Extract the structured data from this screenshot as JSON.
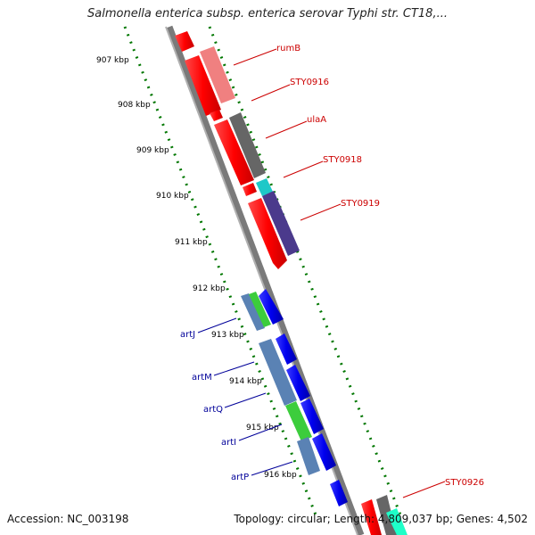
{
  "title": "Salmonella enterica subsp. enterica serovar Typhi str. CT18,...",
  "footer": {
    "accession": "Accession: NC_003198",
    "summary": "Topology: circular; Length: 4,809,037 bp; Genes: 4,502"
  },
  "ticks": [
    "907 kbp",
    "908 kbp",
    "909 kbp",
    "910 kbp",
    "911 kbp",
    "912 kbp",
    "913 kbp",
    "914 kbp",
    "915 kbp",
    "916 kbp"
  ],
  "forward_labels": [
    "rumB",
    "STY0916",
    "ulaA",
    "STY0918",
    "STY0919",
    "STY0926"
  ],
  "reverse_labels": [
    "artJ",
    "artM",
    "artQ",
    "artI",
    "artP"
  ],
  "colors": {
    "forward_label": "#cc0000",
    "reverse_label": "#000099",
    "forward_cds": "#ff0000",
    "reverse_cds": "#0000ee",
    "tick": "#007700",
    "backbone": "#8a8a8a"
  },
  "icons": {
    "gene_arrow": "arrow-shaped feature block"
  }
}
